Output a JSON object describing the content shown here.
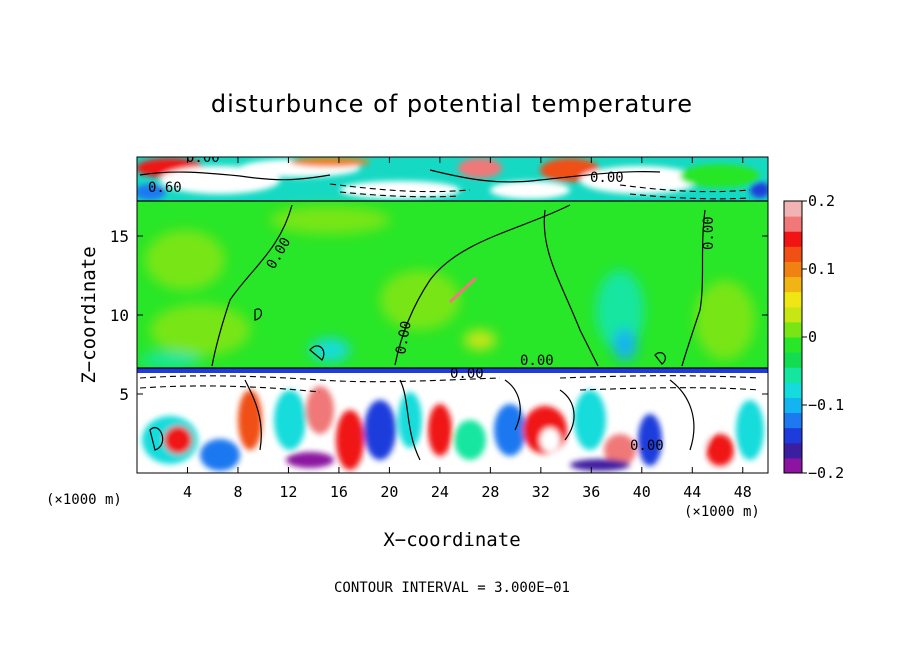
{
  "chart_data": {
    "type": "heatmap",
    "title": "disturbunce of potential temperature",
    "xlabel": "X−coordinate",
    "ylabel": "Z−coordinate",
    "x_unit": "(×1000 m)",
    "x_unit_right": "(×1000 m)",
    "x_ticks": [
      4,
      8,
      12,
      16,
      20,
      24,
      28,
      32,
      36,
      40,
      44,
      48
    ],
    "xlim": [
      0,
      50
    ],
    "y_ticks": [
      5,
      10,
      15
    ],
    "ylim": [
      0,
      20
    ],
    "colorbar": {
      "ticks": [
        "0.2",
        "0.1",
        "0",
        "−0.1",
        "−0.2"
      ],
      "tick_values": [
        0.2,
        0.1,
        0,
        -0.1,
        -0.2
      ],
      "range": [
        -0.2,
        0.2
      ],
      "colors": [
        "#8c14a0",
        "#3c1ea0",
        "#1e3cdc",
        "#1e78f0",
        "#14b4f0",
        "#14dcdc",
        "#14e6a0",
        "#14dc50",
        "#28e628",
        "#78e614",
        "#c8e614",
        "#f0e614",
        "#f0b414",
        "#f08214",
        "#f05014",
        "#f01414",
        "#f07878",
        "#f0b4b4"
      ]
    },
    "contour_labels": [
      {
        "text": "0.00",
        "x": 3.8,
        "z": 19.6
      },
      {
        "text": "0.60",
        "x": 1.5,
        "z": 18.0
      },
      {
        "text": "0.00",
        "x": 36.5,
        "z": 18.5
      },
      {
        "text": "0.00",
        "x": 10.5,
        "z": 14.0
      },
      {
        "text": "0.00",
        "x": 45.6,
        "z": 15.0
      },
      {
        "text": "0.00",
        "x": 21.0,
        "z": 8.8
      },
      {
        "text": "0.00",
        "x": 31.0,
        "z": 7.2
      },
      {
        "text": "0.00",
        "x": 26.0,
        "z": 6.1
      },
      {
        "text": "0.00",
        "x": 40.0,
        "z": 2.0
      }
    ],
    "footnote": "CONTOUR INTERVAL = 3.000E−01"
  }
}
